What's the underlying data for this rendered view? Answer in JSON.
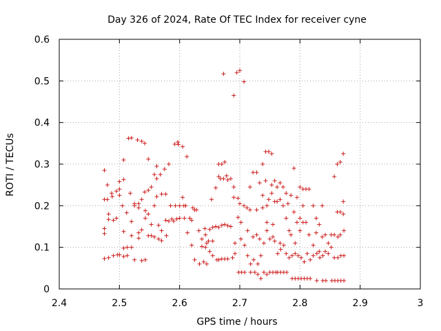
{
  "chart_data": {
    "type": "scatter",
    "title": "Day 326 of 2024, Rate Of TEC Index for receiver cyne",
    "xlabel": "GPS time / hours",
    "ylabel": "ROTI / TECUs",
    "xlim": [
      2.4,
      3.0
    ],
    "ylim": [
      0.0,
      0.6
    ],
    "xticks": [
      "2.4",
      "2.5",
      "2.6",
      "2.7",
      "2.8",
      "2.9",
      "3"
    ],
    "xtick_values": [
      2.4,
      2.5,
      2.6,
      2.7,
      2.8,
      2.9,
      3.0
    ],
    "yticks": [
      "0",
      "0.1",
      "0.2",
      "0.3",
      "0.4",
      "0.5",
      "0.6"
    ],
    "ytick_values": [
      0.0,
      0.1,
      0.2,
      0.3,
      0.4,
      0.5,
      0.6
    ],
    "grid": true,
    "marker": "+",
    "series_color": "#cc1a1a",
    "series": [
      {
        "points": [
          [
            2.475,
            0.285
          ],
          [
            2.475,
            0.215
          ],
          [
            2.475,
            0.145
          ],
          [
            2.475,
            0.133
          ],
          [
            2.475,
            0.073
          ],
          [
            2.48,
            0.25
          ],
          [
            2.48,
            0.215
          ],
          [
            2.482,
            0.18
          ],
          [
            2.482,
            0.167
          ],
          [
            2.482,
            0.075
          ],
          [
            2.487,
            0.23
          ],
          [
            2.488,
            0.222
          ],
          [
            2.49,
            0.165
          ],
          [
            2.49,
            0.08
          ],
          [
            2.495,
            0.235
          ],
          [
            2.495,
            0.17
          ],
          [
            2.497,
            0.082
          ],
          [
            2.5,
            0.258
          ],
          [
            2.5,
            0.24
          ],
          [
            2.5,
            0.225
          ],
          [
            2.5,
            0.082
          ],
          [
            2.505,
            0.2
          ],
          [
            2.507,
            0.31
          ],
          [
            2.507,
            0.263
          ],
          [
            2.507,
            0.138
          ],
          [
            2.507,
            0.098
          ],
          [
            2.507,
            0.078
          ],
          [
            2.512,
            0.183
          ],
          [
            2.513,
            0.1
          ],
          [
            2.513,
            0.08
          ],
          [
            2.515,
            0.362
          ],
          [
            2.518,
            0.23
          ],
          [
            2.52,
            0.363
          ],
          [
            2.52,
            0.162
          ],
          [
            2.52,
            0.128
          ],
          [
            2.52,
            0.1
          ],
          [
            2.525,
            0.205
          ],
          [
            2.525,
            0.2
          ],
          [
            2.525,
            0.07
          ],
          [
            2.53,
            0.358
          ],
          [
            2.532,
            0.205
          ],
          [
            2.532,
            0.195
          ],
          [
            2.532,
            0.135
          ],
          [
            2.532,
            0.122
          ],
          [
            2.537,
            0.355
          ],
          [
            2.537,
            0.215
          ],
          [
            2.537,
            0.142
          ],
          [
            2.537,
            0.068
          ],
          [
            2.542,
            0.35
          ],
          [
            2.542,
            0.233
          ],
          [
            2.543,
            0.188
          ],
          [
            2.543,
            0.17
          ],
          [
            2.543,
            0.07
          ],
          [
            2.548,
            0.312
          ],
          [
            2.548,
            0.237
          ],
          [
            2.548,
            0.18
          ],
          [
            2.548,
            0.128
          ],
          [
            2.553,
            0.245
          ],
          [
            2.553,
            0.155
          ],
          [
            2.553,
            0.128
          ],
          [
            2.558,
            0.275
          ],
          [
            2.558,
            0.2
          ],
          [
            2.558,
            0.125
          ],
          [
            2.562,
            0.295
          ],
          [
            2.562,
            0.265
          ],
          [
            2.562,
            0.222
          ],
          [
            2.565,
            0.153
          ],
          [
            2.565,
            0.12
          ],
          [
            2.568,
            0.275
          ],
          [
            2.57,
            0.228
          ],
          [
            2.57,
            0.14
          ],
          [
            2.57,
            0.116
          ],
          [
            2.575,
            0.288
          ],
          [
            2.577,
            0.228
          ],
          [
            2.577,
            0.165
          ],
          [
            2.578,
            0.128
          ],
          [
            2.582,
            0.3
          ],
          [
            2.582,
            0.163
          ],
          [
            2.585,
            0.2
          ],
          [
            2.587,
            0.168
          ],
          [
            2.59,
            0.163
          ],
          [
            2.592,
            0.348
          ],
          [
            2.593,
            0.2
          ],
          [
            2.595,
            0.168
          ],
          [
            2.597,
            0.353
          ],
          [
            2.598,
            0.347
          ],
          [
            2.6,
            0.2
          ],
          [
            2.6,
            0.17
          ],
          [
            2.605,
            0.342
          ],
          [
            2.605,
            0.22
          ],
          [
            2.607,
            0.2
          ],
          [
            2.608,
            0.17
          ],
          [
            2.61,
            0.2
          ],
          [
            2.612,
            0.318
          ],
          [
            2.613,
            0.135
          ],
          [
            2.617,
            0.17
          ],
          [
            2.62,
            0.105
          ],
          [
            2.62,
            0.165
          ],
          [
            2.622,
            0.195
          ],
          [
            2.625,
            0.19
          ],
          [
            2.625,
            0.07
          ],
          [
            2.628,
            0.19
          ],
          [
            2.632,
            0.14
          ],
          [
            2.633,
            0.06
          ],
          [
            2.637,
            0.12
          ],
          [
            2.637,
            0.102
          ],
          [
            2.64,
            0.065
          ],
          [
            2.642,
            0.145
          ],
          [
            2.643,
            0.13
          ],
          [
            2.643,
            0.1
          ],
          [
            2.645,
            0.11
          ],
          [
            2.645,
            0.06
          ],
          [
            2.648,
            0.115
          ],
          [
            2.65,
            0.143
          ],
          [
            2.65,
            0.09
          ],
          [
            2.653,
            0.215
          ],
          [
            2.655,
            0.148
          ],
          [
            2.655,
            0.115
          ],
          [
            2.655,
            0.08
          ],
          [
            2.66,
            0.243
          ],
          [
            2.66,
            0.15
          ],
          [
            2.662,
            0.07
          ],
          [
            2.665,
            0.3
          ],
          [
            2.665,
            0.27
          ],
          [
            2.665,
            0.148
          ],
          [
            2.665,
            0.07
          ],
          [
            2.668,
            0.265
          ],
          [
            2.67,
            0.3
          ],
          [
            2.67,
            0.153
          ],
          [
            2.67,
            0.072
          ],
          [
            2.673,
            0.517
          ],
          [
            2.673,
            0.265
          ],
          [
            2.675,
            0.305
          ],
          [
            2.675,
            0.155
          ],
          [
            2.675,
            0.072
          ],
          [
            2.678,
            0.272
          ],
          [
            2.68,
            0.262
          ],
          [
            2.68,
            0.152
          ],
          [
            2.68,
            0.072
          ],
          [
            2.685,
            0.265
          ],
          [
            2.685,
            0.15
          ],
          [
            2.688,
            0.075
          ],
          [
            2.69,
            0.465
          ],
          [
            2.69,
            0.245
          ],
          [
            2.69,
            0.22
          ],
          [
            2.692,
            0.11
          ],
          [
            2.692,
            0.085
          ],
          [
            2.695,
            0.52
          ],
          [
            2.697,
            0.218
          ],
          [
            2.697,
            0.172
          ],
          [
            2.698,
            0.04
          ],
          [
            2.7,
            0.525
          ],
          [
            2.7,
            0.205
          ],
          [
            2.702,
            0.16
          ],
          [
            2.702,
            0.12
          ],
          [
            2.703,
            0.04
          ],
          [
            2.707,
            0.498
          ],
          [
            2.707,
            0.2
          ],
          [
            2.708,
            0.105
          ],
          [
            2.708,
            0.04
          ],
          [
            2.712,
            0.195
          ],
          [
            2.713,
            0.14
          ],
          [
            2.713,
            0.08
          ],
          [
            2.717,
            0.245
          ],
          [
            2.717,
            0.19
          ],
          [
            2.718,
            0.06
          ],
          [
            2.718,
            0.04
          ],
          [
            2.722,
            0.28
          ],
          [
            2.722,
            0.125
          ],
          [
            2.723,
            0.07
          ],
          [
            2.725,
            0.04
          ],
          [
            2.728,
            0.28
          ],
          [
            2.728,
            0.19
          ],
          [
            2.728,
            0.13
          ],
          [
            2.73,
            0.06
          ],
          [
            2.73,
            0.035
          ],
          [
            2.733,
            0.255
          ],
          [
            2.733,
            0.12
          ],
          [
            2.735,
            0.08
          ],
          [
            2.735,
            0.025
          ],
          [
            2.738,
            0.3
          ],
          [
            2.738,
            0.225
          ],
          [
            2.738,
            0.195
          ],
          [
            2.74,
            0.11
          ],
          [
            2.74,
            0.04
          ],
          [
            2.743,
            0.33
          ],
          [
            2.743,
            0.26
          ],
          [
            2.745,
            0.2
          ],
          [
            2.745,
            0.16
          ],
          [
            2.745,
            0.14
          ],
          [
            2.745,
            0.035
          ],
          [
            2.748,
            0.33
          ],
          [
            2.748,
            0.215
          ],
          [
            2.75,
            0.12
          ],
          [
            2.75,
            0.04
          ],
          [
            2.753,
            0.325
          ],
          [
            2.753,
            0.25
          ],
          [
            2.753,
            0.23
          ],
          [
            2.755,
            0.155
          ],
          [
            2.755,
            0.125
          ],
          [
            2.755,
            0.04
          ],
          [
            2.758,
            0.26
          ],
          [
            2.758,
            0.21
          ],
          [
            2.758,
            0.115
          ],
          [
            2.76,
            0.04
          ],
          [
            2.762,
            0.245
          ],
          [
            2.762,
            0.21
          ],
          [
            2.763,
            0.085
          ],
          [
            2.763,
            0.04
          ],
          [
            2.767,
            0.255
          ],
          [
            2.767,
            0.215
          ],
          [
            2.767,
            0.11
          ],
          [
            2.768,
            0.095
          ],
          [
            2.768,
            0.04
          ],
          [
            2.772,
            0.245
          ],
          [
            2.772,
            0.2
          ],
          [
            2.773,
            0.105
          ],
          [
            2.773,
            0.04
          ],
          [
            2.777,
            0.23
          ],
          [
            2.777,
            0.17
          ],
          [
            2.777,
            0.085
          ],
          [
            2.778,
            0.04
          ],
          [
            2.78,
            0.205
          ],
          [
            2.782,
            0.14
          ],
          [
            2.782,
            0.075
          ],
          [
            2.785,
            0.225
          ],
          [
            2.785,
            0.13
          ],
          [
            2.787,
            0.08
          ],
          [
            2.787,
            0.025
          ],
          [
            2.79,
            0.29
          ],
          [
            2.79,
            0.185
          ],
          [
            2.792,
            0.11
          ],
          [
            2.792,
            0.085
          ],
          [
            2.792,
            0.025
          ],
          [
            2.795,
            0.22
          ],
          [
            2.795,
            0.16
          ],
          [
            2.797,
            0.08
          ],
          [
            2.797,
            0.025
          ],
          [
            2.8,
            0.245
          ],
          [
            2.8,
            0.17
          ],
          [
            2.8,
            0.14
          ],
          [
            2.802,
            0.075
          ],
          [
            2.802,
            0.025
          ],
          [
            2.805,
            0.24
          ],
          [
            2.805,
            0.2
          ],
          [
            2.805,
            0.16
          ],
          [
            2.807,
            0.065
          ],
          [
            2.807,
            0.025
          ],
          [
            2.81,
            0.24
          ],
          [
            2.81,
            0.16
          ],
          [
            2.812,
            0.085
          ],
          [
            2.812,
            0.025
          ],
          [
            2.815,
            0.24
          ],
          [
            2.815,
            0.13
          ],
          [
            2.817,
            0.07
          ],
          [
            2.817,
            0.025
          ],
          [
            2.822,
            0.2
          ],
          [
            2.822,
            0.105
          ],
          [
            2.822,
            0.08
          ],
          [
            2.827,
            0.17
          ],
          [
            2.827,
            0.135
          ],
          [
            2.828,
            0.085
          ],
          [
            2.828,
            0.02
          ],
          [
            2.832,
            0.155
          ],
          [
            2.832,
            0.09
          ],
          [
            2.833,
            0.075
          ],
          [
            2.837,
            0.2
          ],
          [
            2.837,
            0.125
          ],
          [
            2.838,
            0.08
          ],
          [
            2.838,
            0.02
          ],
          [
            2.842,
            0.13
          ],
          [
            2.842,
            0.09
          ],
          [
            2.843,
            0.02
          ],
          [
            2.847,
            0.11
          ],
          [
            2.847,
            0.085
          ],
          [
            2.852,
            0.13
          ],
          [
            2.852,
            0.1
          ],
          [
            2.853,
            0.02
          ],
          [
            2.857,
            0.27
          ],
          [
            2.857,
            0.13
          ],
          [
            2.857,
            0.075
          ],
          [
            2.858,
            0.02
          ],
          [
            2.862,
            0.3
          ],
          [
            2.862,
            0.185
          ],
          [
            2.863,
            0.125
          ],
          [
            2.863,
            0.075
          ],
          [
            2.863,
            0.02
          ],
          [
            2.867,
            0.305
          ],
          [
            2.867,
            0.185
          ],
          [
            2.867,
            0.13
          ],
          [
            2.868,
            0.08
          ],
          [
            2.868,
            0.02
          ],
          [
            2.872,
            0.325
          ],
          [
            2.872,
            0.18
          ],
          [
            2.872,
            0.21
          ],
          [
            2.873,
            0.14
          ],
          [
            2.873,
            0.08
          ],
          [
            2.873,
            0.02
          ]
        ]
      }
    ]
  }
}
